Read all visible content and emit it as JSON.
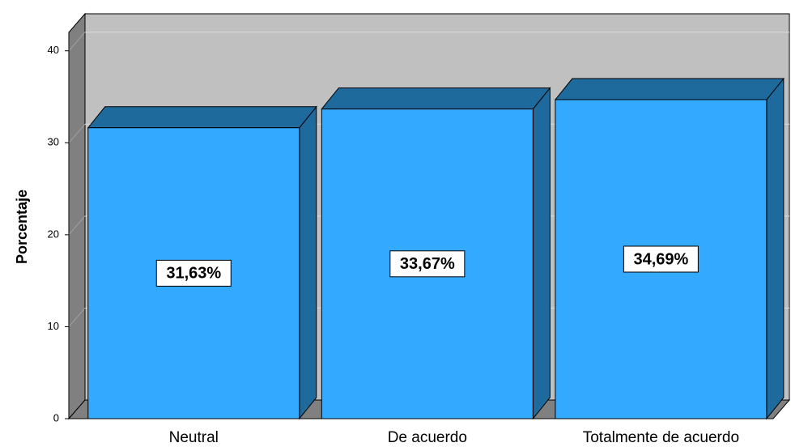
{
  "chart_data": {
    "type": "bar3d",
    "ylabel": "Porcentaje",
    "categories": [
      "Neutral",
      "De acuerdo",
      "Totalmente de acuerdo"
    ],
    "values": [
      31.63,
      33.67,
      34.69
    ],
    "value_labels": [
      "31,63%",
      "33,67%",
      "34,69%"
    ],
    "color": "#33aaff",
    "ylim": [
      0,
      42
    ],
    "yticks": [
      0,
      10,
      20,
      30,
      40
    ],
    "grid": true
  }
}
